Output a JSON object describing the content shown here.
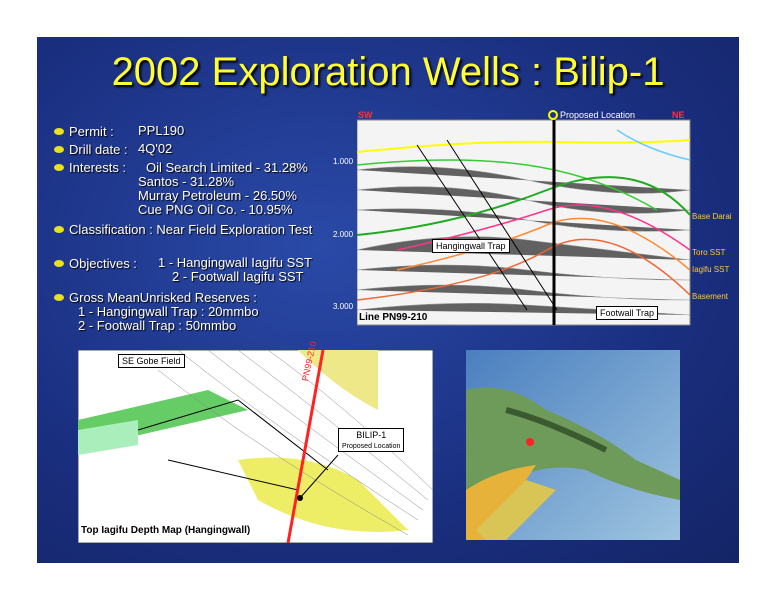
{
  "title": "2002 Exploration Wells : Bilip-1",
  "bullets": {
    "permit": {
      "label": "Permit :",
      "value": "PPL190"
    },
    "drill_date": {
      "label": "Drill date :",
      "value": "4Q'02"
    },
    "interests": {
      "label": "Interests :",
      "items": [
        "Oil Search Limited - 31.28%",
        "Santos - 31.28%",
        "Murray Petroleum - 26.50%",
        "Cue PNG Oil Co. - 10.95%"
      ]
    },
    "classification": "Classification : Near Field Exploration Test",
    "objectives": {
      "label": "Objectives :",
      "items": [
        "1 - Hangingwall Iagifu SST",
        "2 - Footwall Iagifu SST"
      ]
    },
    "reserves": {
      "label": "Gross MeanUnrisked Reserves :",
      "items": [
        "1 - Hangingwall Trap : 20mmbo",
        "2 - Footwall Trap : 50mmbo"
      ]
    }
  },
  "seismic": {
    "left": "SW",
    "right": "NE",
    "proposed": "Proposed Location",
    "times": [
      "1.000",
      "2.000",
      "3.000"
    ],
    "hangingwall": "Hangingwall Trap",
    "footwall": "Footwall Trap",
    "line": "Line PN99-210",
    "horizons": [
      "Base Darai",
      "Toro SST",
      "Iagifu SST",
      "Basement"
    ]
  },
  "map": {
    "field": "SE Gobe Field",
    "seismic_line": "PN99-210",
    "well": "BILIP-1",
    "well_note": "Proposed Location",
    "caption": "Top Iagifu Depth Map (Hangingwall)"
  }
}
